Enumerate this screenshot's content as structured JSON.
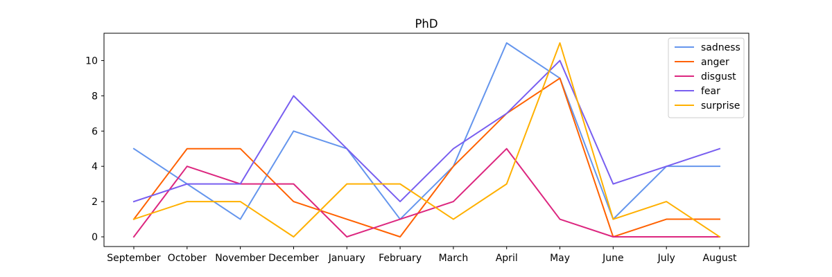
{
  "chart_data": {
    "type": "line",
    "title": "PhD",
    "xlabel": "",
    "ylabel": "",
    "categories": [
      "September",
      "October",
      "November",
      "December",
      "January",
      "February",
      "March",
      "April",
      "May",
      "June",
      "July",
      "August"
    ],
    "ylim": [
      -0.55,
      11.55
    ],
    "yticks": [
      0,
      2,
      4,
      6,
      8,
      10
    ],
    "grid": false,
    "legend_position": "top-right",
    "series": [
      {
        "name": "sadness",
        "color": "#6495ED",
        "values": [
          5,
          3,
          1,
          6,
          5,
          1,
          4,
          11,
          9,
          1,
          4,
          4
        ]
      },
      {
        "name": "anger",
        "color": "#FF6100",
        "values": [
          1,
          5,
          5,
          2,
          1,
          0,
          4,
          7,
          9,
          0,
          1,
          1
        ]
      },
      {
        "name": "disgust",
        "color": "#DC267F",
        "values": [
          0,
          4,
          3,
          3,
          0,
          1,
          2,
          5,
          1,
          0,
          0,
          0
        ]
      },
      {
        "name": "fear",
        "color": "#785EF0",
        "values": [
          2,
          3,
          3,
          8,
          5,
          2,
          5,
          7,
          10,
          3,
          4,
          5
        ]
      },
      {
        "name": "surprise",
        "color": "#FFB000",
        "values": [
          1,
          2,
          2,
          0,
          3,
          3,
          1,
          3,
          11,
          1,
          2,
          0
        ]
      }
    ]
  }
}
